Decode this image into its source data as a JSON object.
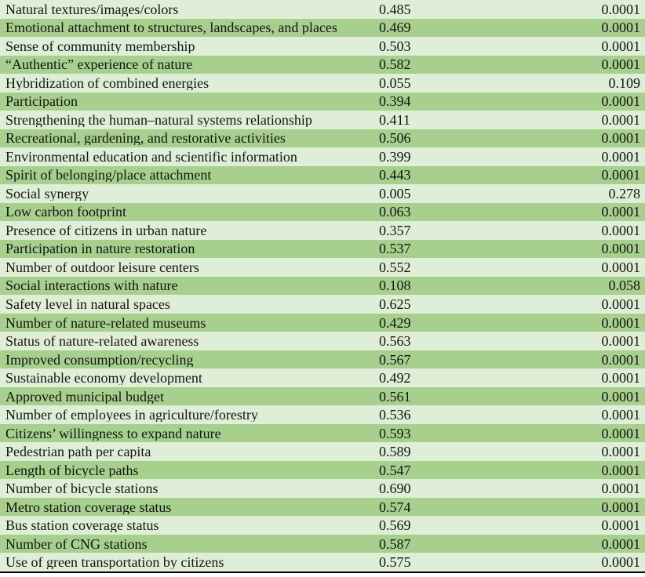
{
  "colors": {
    "row_base": "#dfeed6",
    "row_alt": "#a7cf8d",
    "rule": "#000000",
    "text": "#141414"
  },
  "table": {
    "rows": [
      {
        "indicator": "Natural textures/images/colors",
        "value": "0.485",
        "p": "0.0001"
      },
      {
        "indicator": "Emotional attachment to structures, landscapes, and places",
        "value": "0.469",
        "p": "0.0001"
      },
      {
        "indicator": "Sense of community membership",
        "value": "0.503",
        "p": "0.0001"
      },
      {
        "indicator": "“Authentic” experience of nature",
        "value": "0.582",
        "p": "0.0001"
      },
      {
        "indicator": "Hybridization of combined energies",
        "value": "0.055",
        "p": "0.109"
      },
      {
        "indicator": "Participation",
        "value": "0.394",
        "p": "0.0001"
      },
      {
        "indicator": "Strengthening the human–natural systems relationship",
        "value": "0.411",
        "p": "0.0001"
      },
      {
        "indicator": "Recreational, gardening, and restorative activities",
        "value": "0.506",
        "p": "0.0001"
      },
      {
        "indicator": "Environmental education and scientific information",
        "value": "0.399",
        "p": "0.0001"
      },
      {
        "indicator": "Spirit of belonging/place attachment",
        "value": "0.443",
        "p": "0.0001"
      },
      {
        "indicator": "Social synergy",
        "value": "0.005",
        "p": "0.278"
      },
      {
        "indicator": "Low carbon footprint",
        "value": "0.063",
        "p": "0.0001"
      },
      {
        "indicator": "Presence of citizens in urban nature",
        "value": "0.357",
        "p": "0.0001"
      },
      {
        "indicator": "Participation in nature restoration",
        "value": "0.537",
        "p": "0.0001"
      },
      {
        "indicator": "Number of outdoor leisure centers",
        "value": "0.552",
        "p": "0.0001"
      },
      {
        "indicator": "Social interactions with nature",
        "value": "0.108",
        "p": "0.058"
      },
      {
        "indicator": "Safety level in natural spaces",
        "value": "0.625",
        "p": "0.0001"
      },
      {
        "indicator": "Number of nature-related museums",
        "value": "0.429",
        "p": "0.0001"
      },
      {
        "indicator": "Status of nature-related awareness",
        "value": "0.563",
        "p": "0.0001"
      },
      {
        "indicator": "Improved consumption/recycling",
        "value": "0.567",
        "p": "0.0001"
      },
      {
        "indicator": "Sustainable economy development",
        "value": "0.492",
        "p": "0.0001"
      },
      {
        "indicator": "Approved municipal budget",
        "value": "0.561",
        "p": "0.0001"
      },
      {
        "indicator": "Number of employees in agriculture/forestry",
        "value": "0.536",
        "p": "0.0001"
      },
      {
        "indicator": "Citizens’ willingness to expand nature",
        "value": "0.593",
        "p": "0.0001"
      },
      {
        "indicator": "Pedestrian path per capita",
        "value": "0.589",
        "p": "0.0001"
      },
      {
        "indicator": "Length of bicycle paths",
        "value": "0.547",
        "p": "0.0001"
      },
      {
        "indicator": "Number of bicycle stations",
        "value": "0.690",
        "p": "0.0001"
      },
      {
        "indicator": "Metro station coverage status",
        "value": "0.574",
        "p": "0.0001"
      },
      {
        "indicator": "Bus station coverage status",
        "value": "0.569",
        "p": "0.0001"
      },
      {
        "indicator": "Number of CNG stations",
        "value": "0.587",
        "p": "0.0001"
      },
      {
        "indicator": "Use of green transportation by citizens",
        "value": "0.575",
        "p": "0.0001"
      }
    ]
  }
}
